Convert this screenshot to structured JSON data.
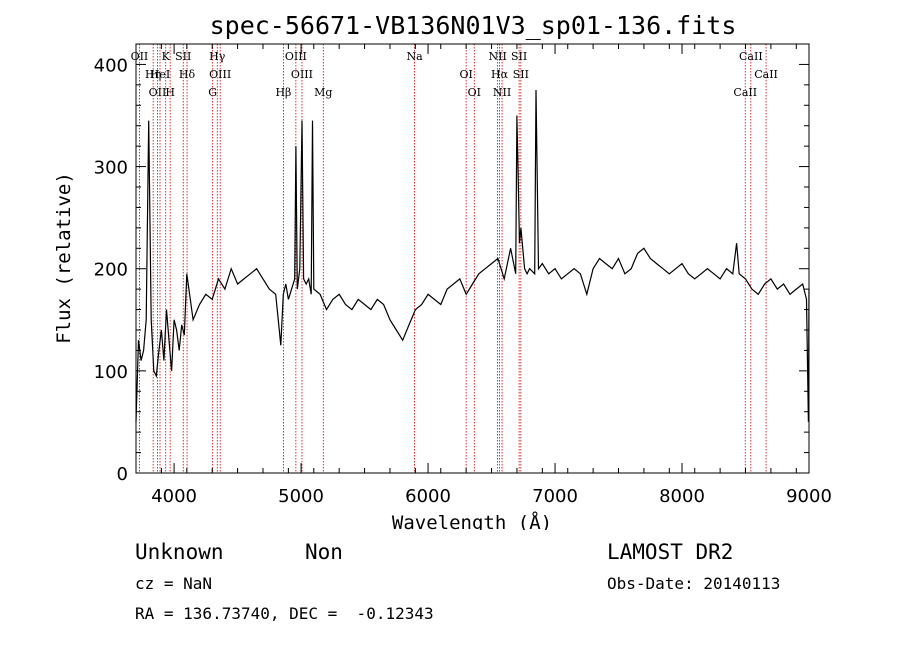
{
  "chart_data": {
    "type": "line",
    "title": "spec-56671-VB136N01V3_sp01-136.fits",
    "xlabel": "Wavelength (Å)",
    "ylabel": "Flux (relative)",
    "xlim": [
      3700,
      9000
    ],
    "ylim": [
      0,
      420
    ],
    "xticks": [
      4000,
      5000,
      6000,
      7000,
      8000,
      9000
    ],
    "yticks": [
      0,
      100,
      200,
      300,
      400
    ],
    "line_color": "#000000",
    "marker_color": "#cc0000",
    "series": [
      {
        "x": [
          3700,
          3720,
          3740,
          3760,
          3780,
          3800,
          3820,
          3840,
          3860,
          3880,
          3900,
          3920,
          3940,
          3960,
          3980,
          4000,
          4020,
          4040,
          4060,
          4080,
          4100,
          4150,
          4200,
          4250,
          4300,
          4350,
          4400,
          4450,
          4500,
          4550,
          4600,
          4650,
          4700,
          4750,
          4800,
          4840,
          4860,
          4880,
          4900,
          4950,
          4959,
          4970,
          4990,
          5007,
          5020,
          5040,
          5060,
          5080,
          5090,
          5100,
          5150,
          5200,
          5250,
          5300,
          5350,
          5400,
          5450,
          5500,
          5550,
          5600,
          5650,
          5700,
          5750,
          5800,
          5850,
          5900,
          5950,
          6000,
          6050,
          6100,
          6150,
          6200,
          6250,
          6300,
          6350,
          6400,
          6450,
          6500,
          6550,
          6600,
          6650,
          6690,
          6700,
          6720,
          6731,
          6760,
          6780,
          6800,
          6840,
          6850,
          6870,
          6900,
          6950,
          7000,
          7050,
          7100,
          7150,
          7200,
          7250,
          7300,
          7350,
          7400,
          7450,
          7500,
          7550,
          7600,
          7650,
          7700,
          7750,
          7800,
          7850,
          7900,
          7950,
          8000,
          8050,
          8100,
          8150,
          8200,
          8250,
          8300,
          8350,
          8400,
          8430,
          8450,
          8500,
          8550,
          8600,
          8650,
          8700,
          8750,
          8800,
          8850,
          8900,
          8950,
          8980,
          8995,
          9000
        ],
        "y": [
          50,
          130,
          110,
          120,
          150,
          345,
          150,
          100,
          95,
          120,
          140,
          110,
          160,
          130,
          100,
          150,
          140,
          120,
          145,
          135,
          195,
          150,
          165,
          175,
          170,
          190,
          180,
          200,
          185,
          190,
          195,
          200,
          190,
          180,
          175,
          125,
          175,
          185,
          170,
          190,
          320,
          180,
          200,
          345,
          190,
          185,
          190,
          175,
          345,
          180,
          175,
          160,
          170,
          175,
          165,
          160,
          170,
          165,
          160,
          170,
          165,
          150,
          140,
          130,
          145,
          160,
          165,
          175,
          170,
          165,
          180,
          185,
          190,
          175,
          185,
          195,
          200,
          205,
          210,
          190,
          220,
          195,
          350,
          225,
          240,
          200,
          195,
          200,
          195,
          375,
          200,
          205,
          195,
          200,
          190,
          195,
          200,
          195,
          175,
          200,
          210,
          205,
          200,
          210,
          195,
          200,
          215,
          220,
          210,
          205,
          200,
          195,
          200,
          205,
          195,
          190,
          195,
          200,
          195,
          190,
          200,
          195,
          225,
          195,
          190,
          180,
          175,
          185,
          190,
          180,
          185,
          175,
          180,
          185,
          170,
          50,
          180
        ]
      }
    ],
    "lines": [
      {
        "name": "OII",
        "x": 3727
      },
      {
        "name": "Hη",
        "x": 3835
      },
      {
        "name": "OII",
        "x": 3869
      },
      {
        "name": "K",
        "x": 3934
      },
      {
        "name": "HeI",
        "x": 3889
      },
      {
        "name": "H",
        "x": 3969
      },
      {
        "name": "SII",
        "x": 4072
      },
      {
        "name": "Hδ",
        "x": 4102
      },
      {
        "name": "G",
        "x": 4304
      },
      {
        "name": "Hγ",
        "x": 4340
      },
      {
        "name": "OIII",
        "x": 4363
      },
      {
        "name": "Hβ",
        "x": 4861
      },
      {
        "name": "OIII",
        "x": 4959
      },
      {
        "name": "OIII",
        "x": 5007
      },
      {
        "name": "Mg",
        "x": 5175
      },
      {
        "name": "Na",
        "x": 5894
      },
      {
        "name": "OI",
        "x": 6300
      },
      {
        "name": "OI",
        "x": 6364
      },
      {
        "name": "NII",
        "x": 6548
      },
      {
        "name": "Hα",
        "x": 6563
      },
      {
        "name": "NII",
        "x": 6583
      },
      {
        "name": "SII",
        "x": 6717
      },
      {
        "name": "SII",
        "x": 6731
      },
      {
        "name": "CaII",
        "x": 8498
      },
      {
        "name": "CaII",
        "x": 8542
      },
      {
        "name": "CaII",
        "x": 8662
      }
    ]
  },
  "info": {
    "object_class": "Unknown",
    "object_subclass": "Non",
    "survey": "LAMOST DR2",
    "cz": "cz = NaN",
    "obs_date": "Obs-Date: 20140113",
    "coords": "RA = 136.73740, DEC =  -0.12343"
  }
}
